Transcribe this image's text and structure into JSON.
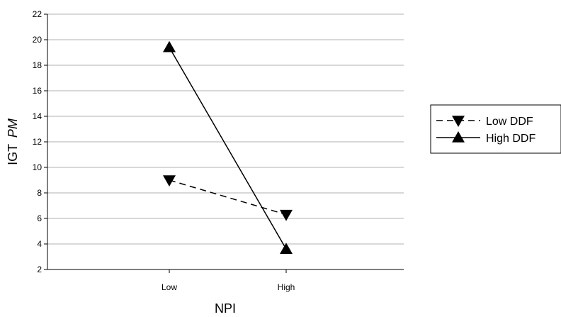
{
  "chart_data": {
    "type": "line",
    "categories": [
      "Low",
      "High"
    ],
    "xlabel": "NPI",
    "ylabel": "IGT",
    "ylabel_italic": "PM",
    "ylim": [
      2,
      22
    ],
    "yticks": [
      2,
      4,
      6,
      8,
      10,
      12,
      14,
      16,
      18,
      20,
      22
    ],
    "grid": true,
    "legend": "right",
    "series": [
      {
        "name": "Low DDF",
        "values": [
          9.0,
          6.3
        ],
        "line_style": "dashed",
        "marker": "triangle-down",
        "color": "#000000"
      },
      {
        "name": "High DDF",
        "values": [
          19.4,
          3.6
        ],
        "line_style": "solid",
        "marker": "triangle-up",
        "color": "#000000"
      }
    ]
  }
}
